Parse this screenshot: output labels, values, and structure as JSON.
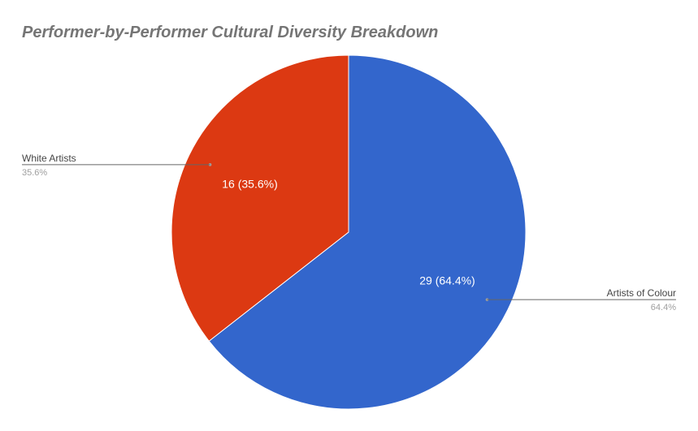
{
  "chart_data": {
    "type": "pie",
    "title": "Performer-by-Performer Cultural Diversity Breakdown",
    "start_angle_deg": 0,
    "direction": "clockwise",
    "slices": [
      {
        "name": "Artists of Colour",
        "value": 29,
        "percent": 64.4,
        "inside_label": "29 (64.4%)",
        "legend_pct": "64.4%",
        "color": "#3366cc"
      },
      {
        "name": "White Artists",
        "value": 16,
        "percent": 35.6,
        "inside_label": "16 (35.6%)",
        "legend_pct": "35.6%",
        "color": "#dc3912"
      }
    ],
    "legend": "labeled callouts"
  }
}
